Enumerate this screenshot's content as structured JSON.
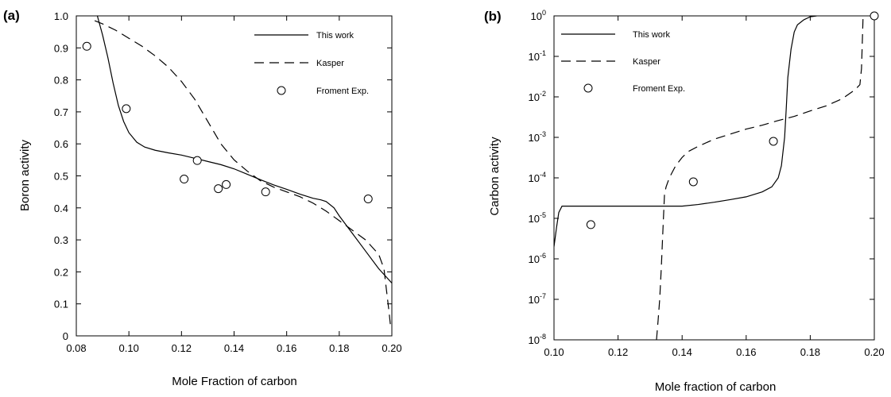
{
  "chart_data": [
    {
      "panel_label": "(a)",
      "type": "line",
      "xlabel": "Mole Fraction of carbon",
      "ylabel": "Boron activity",
      "xlim": [
        0.08,
        0.2
      ],
      "ylim": [
        0,
        1.0
      ],
      "x_ticks": [
        0.08,
        0.1,
        0.12,
        0.14,
        0.16,
        0.18,
        0.2
      ],
      "x_tick_labels": [
        "0.08",
        "0.10",
        "0.12",
        "0.14",
        "0.16",
        "0.18",
        "0.20"
      ],
      "y_ticks": [
        0,
        0.1,
        0.2,
        0.3,
        0.4,
        0.5,
        0.6,
        0.7,
        0.8,
        0.9,
        1.0
      ],
      "y_tick_labels": [
        "0",
        "0.1",
        "0.2",
        "0.3",
        "0.4",
        "0.5",
        "0.6",
        "0.7",
        "0.8",
        "0.9",
        "1.0"
      ],
      "legend_position": "top-right",
      "series": [
        {
          "name": "This work",
          "style": "solid",
          "points": [
            [
              0.088,
              1.0
            ],
            [
              0.09,
              0.94
            ],
            [
              0.092,
              0.87
            ],
            [
              0.094,
              0.79
            ],
            [
              0.096,
              0.72
            ],
            [
              0.098,
              0.67
            ],
            [
              0.1,
              0.635
            ],
            [
              0.103,
              0.605
            ],
            [
              0.106,
              0.59
            ],
            [
              0.11,
              0.58
            ],
            [
              0.115,
              0.572
            ],
            [
              0.12,
              0.565
            ],
            [
              0.125,
              0.555
            ],
            [
              0.13,
              0.545
            ],
            [
              0.135,
              0.535
            ],
            [
              0.14,
              0.522
            ],
            [
              0.145,
              0.505
            ],
            [
              0.15,
              0.488
            ],
            [
              0.155,
              0.472
            ],
            [
              0.16,
              0.458
            ],
            [
              0.165,
              0.443
            ],
            [
              0.17,
              0.43
            ],
            [
              0.173,
              0.425
            ],
            [
              0.175,
              0.42
            ],
            [
              0.178,
              0.4
            ],
            [
              0.18,
              0.375
            ],
            [
              0.185,
              0.32
            ],
            [
              0.19,
              0.265
            ],
            [
              0.195,
              0.21
            ],
            [
              0.2,
              0.165
            ]
          ]
        },
        {
          "name": "Kasper",
          "style": "dashed",
          "points": [
            [
              0.087,
              0.985
            ],
            [
              0.09,
              0.975
            ],
            [
              0.095,
              0.955
            ],
            [
              0.1,
              0.93
            ],
            [
              0.105,
              0.905
            ],
            [
              0.11,
              0.875
            ],
            [
              0.115,
              0.84
            ],
            [
              0.12,
              0.795
            ],
            [
              0.125,
              0.74
            ],
            [
              0.13,
              0.67
            ],
            [
              0.135,
              0.6
            ],
            [
              0.14,
              0.55
            ],
            [
              0.145,
              0.515
            ],
            [
              0.15,
              0.485
            ],
            [
              0.155,
              0.465
            ],
            [
              0.16,
              0.45
            ],
            [
              0.165,
              0.435
            ],
            [
              0.17,
              0.415
            ],
            [
              0.175,
              0.39
            ],
            [
              0.18,
              0.36
            ],
            [
              0.185,
              0.33
            ],
            [
              0.19,
              0.3
            ],
            [
              0.195,
              0.255
            ],
            [
              0.197,
              0.21
            ],
            [
              0.198,
              0.14
            ],
            [
              0.199,
              0.07
            ],
            [
              0.1995,
              0.03
            ]
          ]
        },
        {
          "name": "Froment Exp.",
          "style": "markers",
          "points": [
            [
              0.084,
              0.905
            ],
            [
              0.099,
              0.71
            ],
            [
              0.121,
              0.49
            ],
            [
              0.126,
              0.548
            ],
            [
              0.134,
              0.46
            ],
            [
              0.137,
              0.473
            ],
            [
              0.152,
              0.45
            ],
            [
              0.191,
              0.428
            ]
          ]
        }
      ]
    },
    {
      "panel_label": "(b)",
      "type": "line",
      "yscale": "log",
      "xlabel": "Mole fraction of carbon",
      "ylabel": "Carbon activity",
      "xlim": [
        0.1,
        0.2
      ],
      "ylim": [
        1e-08,
        1
      ],
      "x_ticks": [
        0.1,
        0.12,
        0.14,
        0.16,
        0.18,
        0.2
      ],
      "x_tick_labels": [
        "0.10",
        "0.12",
        "0.14",
        "0.16",
        "0.18",
        "0.20"
      ],
      "y_ticks": [
        1e-08,
        1e-07,
        1e-06,
        1e-05,
        0.0001,
        0.001,
        0.01,
        0.1,
        1
      ],
      "y_tick_labels": [
        {
          "base": "10",
          "exp": "-8"
        },
        {
          "base": "10",
          "exp": "-7"
        },
        {
          "base": "10",
          "exp": "-6"
        },
        {
          "base": "10",
          "exp": "-5"
        },
        {
          "base": "10",
          "exp": "-4"
        },
        {
          "base": "10",
          "exp": "-3"
        },
        {
          "base": "10",
          "exp": "-2"
        },
        {
          "base": "10",
          "exp": "-1"
        },
        {
          "base": "10",
          "exp": "0"
        }
      ],
      "legend_position": "top-left",
      "series": [
        {
          "name": "This work",
          "style": "solid",
          "points": [
            [
              0.1,
              2e-06
            ],
            [
              0.1008,
              6e-06
            ],
            [
              0.1015,
              1.4e-05
            ],
            [
              0.1025,
              2e-05
            ],
            [
              0.11,
              2e-05
            ],
            [
              0.12,
              2e-05
            ],
            [
              0.13,
              2e-05
            ],
            [
              0.14,
              2e-05
            ],
            [
              0.145,
              2.2e-05
            ],
            [
              0.15,
              2.5e-05
            ],
            [
              0.155,
              2.9e-05
            ],
            [
              0.16,
              3.4e-05
            ],
            [
              0.165,
              4.5e-05
            ],
            [
              0.168,
              6e-05
            ],
            [
              0.17,
              0.0001
            ],
            [
              0.171,
              0.0002
            ],
            [
              0.172,
              0.001
            ],
            [
              0.1725,
              0.005
            ],
            [
              0.173,
              0.03
            ],
            [
              0.174,
              0.15
            ],
            [
              0.175,
              0.4
            ],
            [
              0.176,
              0.6
            ],
            [
              0.178,
              0.8
            ],
            [
              0.18,
              0.95
            ],
            [
              0.182,
              1.0
            ]
          ]
        },
        {
          "name": "Kasper",
          "style": "dashed",
          "points": [
            [
              0.132,
              1e-08
            ],
            [
              0.1325,
              3e-08
            ],
            [
              0.133,
              1e-07
            ],
            [
              0.1335,
              6e-07
            ],
            [
              0.134,
              5e-06
            ],
            [
              0.1345,
              4e-05
            ],
            [
              0.135,
              6e-05
            ],
            [
              0.136,
              0.0001
            ],
            [
              0.138,
              0.0002
            ],
            [
              0.14,
              0.00032
            ],
            [
              0.142,
              0.00045
            ],
            [
              0.145,
              0.0006
            ],
            [
              0.15,
              0.0009
            ],
            [
              0.155,
              0.0012
            ],
            [
              0.16,
              0.0016
            ],
            [
              0.165,
              0.002
            ],
            [
              0.17,
              0.0026
            ],
            [
              0.175,
              0.0033
            ],
            [
              0.18,
              0.0045
            ],
            [
              0.185,
              0.006
            ],
            [
              0.19,
              0.009
            ],
            [
              0.194,
              0.015
            ],
            [
              0.1955,
              0.02
            ],
            [
              0.196,
              0.05
            ],
            [
              0.1963,
              0.3
            ],
            [
              0.1965,
              1.0
            ]
          ]
        },
        {
          "name": "Froment Exp.",
          "style": "markers",
          "points": [
            [
              0.1115,
              7e-06
            ],
            [
              0.1435,
              8e-05
            ],
            [
              0.1685,
              0.0008
            ],
            [
              0.2,
              1
            ]
          ]
        }
      ]
    }
  ]
}
